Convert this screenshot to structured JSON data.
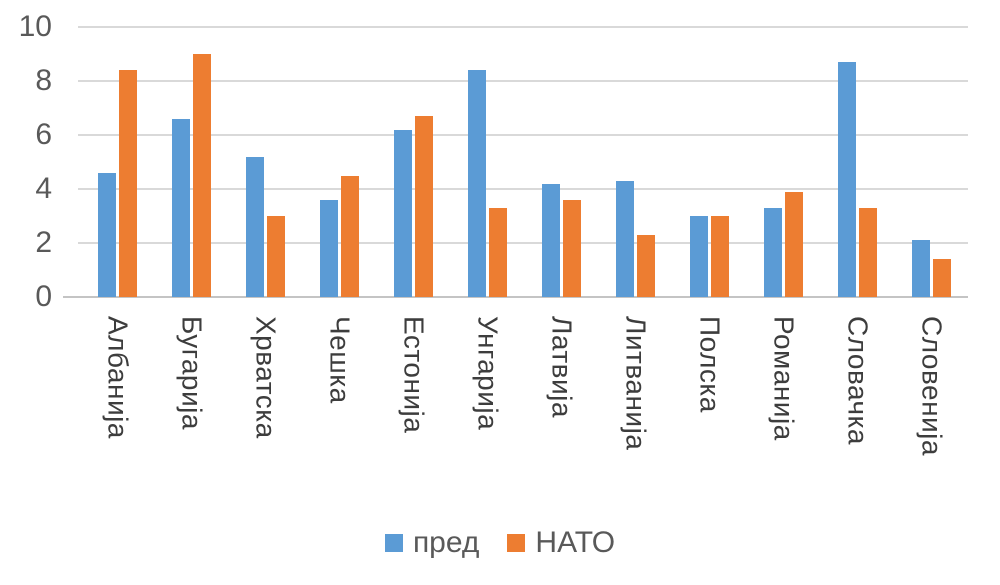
{
  "chart_data": {
    "type": "bar",
    "title": "",
    "categories": [
      "Албанија",
      "Бугарија",
      "Хрватска",
      "Чешка",
      "Естонија",
      "Унгарија",
      "Латвија",
      "Литванија",
      "Полска",
      "Романија",
      "Словачка",
      "Словенија"
    ],
    "series": [
      {
        "name": "пред",
        "color": "#5B9BD5",
        "values": [
          4.6,
          6.6,
          5.2,
          3.6,
          6.2,
          8.4,
          4.2,
          4.3,
          3.0,
          3.3,
          8.7,
          2.1
        ]
      },
      {
        "name": "НАТО",
        "color": "#ED7D31",
        "values": [
          8.4,
          9.0,
          3.0,
          4.5,
          6.7,
          3.3,
          3.6,
          2.3,
          3.0,
          3.9,
          3.3,
          1.4
        ]
      }
    ],
    "ylim": [
      0,
      10
    ],
    "yticks": [
      0,
      2,
      4,
      6,
      8,
      10
    ],
    "grid": true,
    "legend_position": "bottom"
  },
  "colors": {
    "series_pred": "#5B9BD5",
    "series_nato": "#ED7D31",
    "gridline": "#D9D9D9",
    "axis_line": "#C4C4C4",
    "tick_text": "#595959",
    "category_text": "#3D3D3D",
    "legend_text": "#595959",
    "background": "#FFFFFF"
  }
}
